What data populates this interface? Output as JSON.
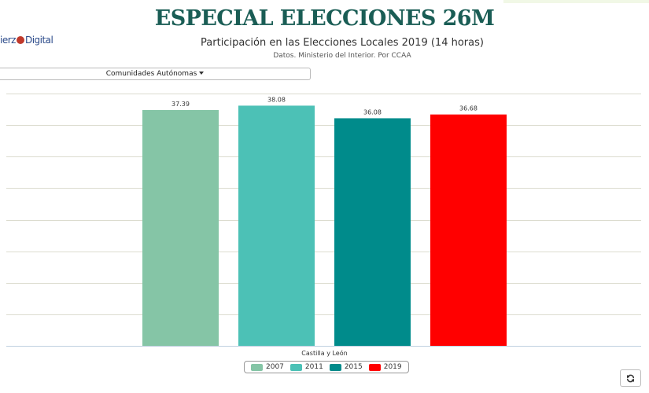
{
  "header": {
    "title": "ESPECIAL ELECCIONES 26M"
  },
  "logo": {
    "text_left": "ierz",
    "text_right": "Digital"
  },
  "controls": {
    "region_selector": "Comunidades Autónomas"
  },
  "colors": {
    "title": "#1a5d55",
    "grid": "#dcdccf",
    "axis": "#c0d0e0"
  },
  "icons": {
    "refresh": "refresh-icon",
    "dropdown": "caret-down-icon",
    "logo": "globe-icon"
  },
  "chart_data": {
    "type": "bar",
    "title": "Participación en las Elecciones Locales 2019 (14 horas)",
    "subtitle": "Datos. Ministerio del Interior. Por CCAA",
    "categories": [
      "Castilla y León"
    ],
    "series": [
      {
        "name": "2007",
        "values": [
          37.39
        ],
        "color": "#85c5a6"
      },
      {
        "name": "2011",
        "values": [
          38.08
        ],
        "color": "#4cc1b6"
      },
      {
        "name": "2015",
        "values": [
          36.08
        ],
        "color": "#008b8b"
      },
      {
        "name": "2019",
        "values": [
          36.68
        ],
        "color": "#ff0000"
      }
    ],
    "ylim": [
      0,
      40
    ],
    "grid": true,
    "legend_position": "bottom-center"
  }
}
